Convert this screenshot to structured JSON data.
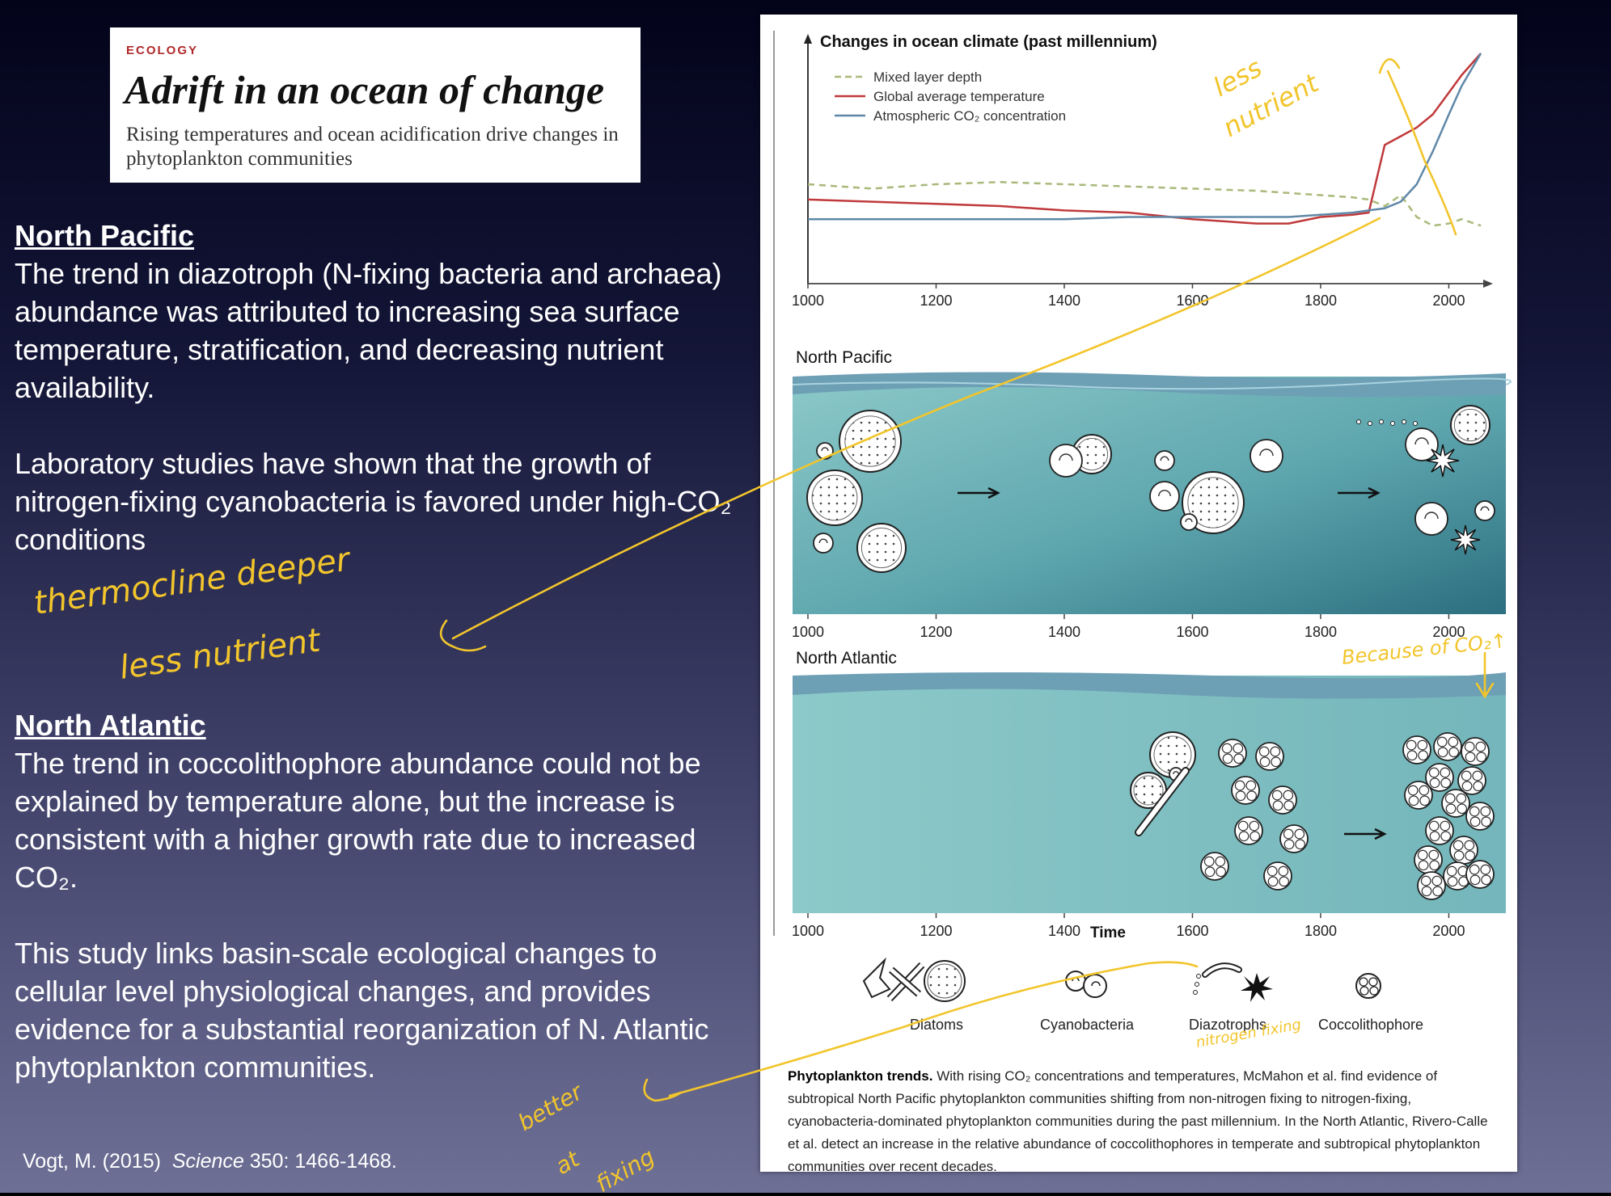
{
  "header": {
    "eyebrow": "ECOLOGY",
    "title": "Adrift in an ocean of change",
    "subtitle": "Rising temperatures and ocean acidification drive changes in phytoplankton communities"
  },
  "left": {
    "np_heading": "North Pacific",
    "np_p1": "The trend in diazotroph (N-fixing bacteria and archaea) abundance was attributed to increasing sea surface temperature, stratification, and decreasing nutrient availability.",
    "np_p2": "Laboratory studies have shown that the growth of nitrogen-fixing cyanobacteria is favored under high-CO₂ conditions",
    "na_heading": "North Atlantic",
    "na_p1": "The trend in coccolithophore abundance could not be explained by temperature alone, but the increase is consistent with a higher growth rate due to increased CO₂.",
    "na_p2": "This study links basin-scale ecological changes to cellular level physiological changes, and provides evidence for a substantial reorganization of N. Atlantic phytoplankton communities.",
    "citation_authors": "Vogt, M. (2015)",
    "citation_journal": "Science",
    "citation_rest": "350: 1466-1468."
  },
  "figure": {
    "chart_title": "Changes in ocean climate (past millennium)",
    "legend": [
      "Mixed layer depth",
      "Global average temperature",
      "Atmospheric CO₂ concentration"
    ],
    "legend_colors": [
      "#a9b97a",
      "#c0393b",
      "#5f88a8"
    ],
    "x_ticks": [
      "1000",
      "1200",
      "1400",
      "1600",
      "1800",
      "2000"
    ],
    "np_label": "North Pacific",
    "na_label": "North Atlantic",
    "time_label": "Time",
    "organisms": [
      "Diatoms",
      "Cyanobacteria",
      "Diazotrophs",
      "Coccolithophore"
    ],
    "caption_bold": "Phytoplankton trends.",
    "caption": "With rising CO₂ concentrations and temperatures, McMahon et al. find evidence of subtropical North Pacific phytoplankton communities shifting from non-nitrogen fixing to nitrogen-fixing, cyanobacteria-dominated phytoplankton communities during the past millennium. In the North Atlantic, Rivero-Calle et al. detect an increase in the relative abundance of coccolithophores in temperate and subtropical phytoplankton communities over recent decades."
  },
  "chart_data": {
    "type": "line",
    "title": "Changes in ocean climate (past millennium)",
    "xlabel": "",
    "ylabel": "",
    "xlim": [
      1000,
      2060
    ],
    "ylim": [
      0,
      100
    ],
    "grid": false,
    "legend_position": "top-left",
    "x": [
      1000,
      1100,
      1200,
      1300,
      1400,
      1500,
      1600,
      1700,
      1750,
      1800,
      1850,
      1875,
      1900,
      1925,
      1950,
      1975,
      2000,
      2020,
      2050
    ],
    "series": [
      {
        "name": "Mixed layer depth",
        "values": [
          40,
          38,
          40,
          41,
          40,
          39,
          38,
          37,
          36,
          35,
          34,
          33,
          30,
          35,
          25,
          21,
          22,
          24,
          21
        ]
      },
      {
        "name": "Global average temperature",
        "values": [
          33,
          32,
          31,
          30,
          28,
          27,
          24,
          22,
          22,
          25,
          26,
          27,
          58,
          62,
          66,
          72,
          82,
          90,
          100
        ]
      },
      {
        "name": "Atmospheric CO₂ concentration",
        "values": [
          24,
          24,
          24,
          24,
          24,
          25,
          25,
          25,
          25,
          26,
          27,
          28,
          29,
          32,
          40,
          55,
          72,
          85,
          100
        ]
      }
    ]
  },
  "annotations": {
    "top_right": [
      "less",
      "nutrient"
    ],
    "left_mid": [
      "thermocline deeper",
      "less nutrient"
    ],
    "because_co2": "Because of CO₂↑",
    "nitrogen_fixing": "nitrogen fixing",
    "bottom_left": [
      "better",
      "at",
      "fixing"
    ],
    "color": "#f2c52c"
  }
}
